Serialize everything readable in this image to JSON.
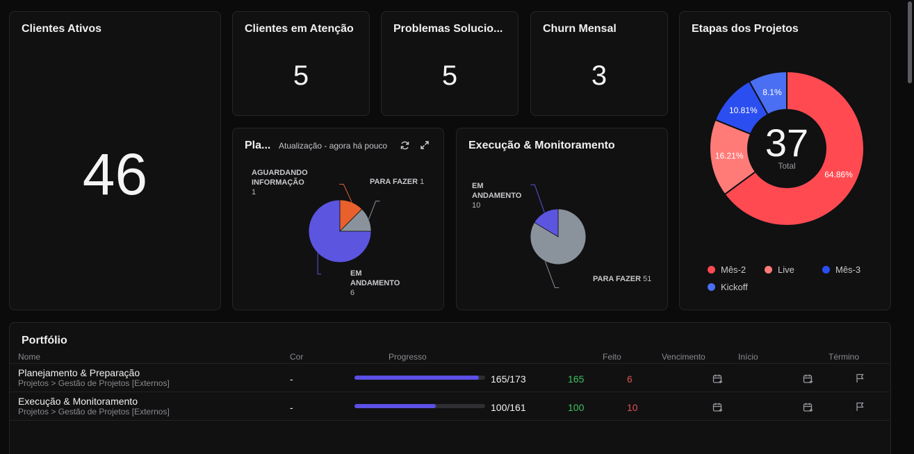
{
  "kpis": {
    "clientes_ativos": {
      "title": "Clientes Ativos",
      "value": "46"
    },
    "clientes_atencao": {
      "title": "Clientes em Atenção",
      "value": "5"
    },
    "problemas": {
      "title": "Problemas Solucio...",
      "value": "5"
    },
    "churn": {
      "title": "Churn Mensal",
      "value": "3"
    }
  },
  "planejamento": {
    "title": "Pla...",
    "update": "Atualização - agora há pouco",
    "slices": [
      {
        "name": "EM ANDAMENTO",
        "value": 6,
        "color": "#5b55e0",
        "label_lines": [
          "EM",
          "ANDAMENTO"
        ],
        "count": "6"
      },
      {
        "name": "AGUARDANDO INFORMAÇÃO",
        "value": 1,
        "color": "#e8612c",
        "label_lines": [
          "AGUARDANDO",
          "INFORMAÇÃO"
        ],
        "count": "1"
      },
      {
        "name": "PARA FAZER",
        "value": 1,
        "color": "#8a939c",
        "label_lines": [
          "PARA FAZER"
        ],
        "count": "1"
      }
    ]
  },
  "execucao": {
    "title": "Execução & Monitoramento",
    "slices": [
      {
        "name": "EM ANDAMENTO",
        "value": 10,
        "color": "#5b55e0",
        "label_lines": [
          "EM",
          "ANDAMENTO"
        ],
        "count": "10"
      },
      {
        "name": "PARA FAZER",
        "value": 51,
        "color": "#8a939c",
        "label_lines": [
          "PARA FAZER"
        ],
        "count": "51"
      }
    ]
  },
  "etapas": {
    "title": "Etapas dos Projetos",
    "total_value": "37",
    "total_label": "Total",
    "slices": [
      {
        "name": "Mês-2",
        "value": 64.86,
        "label": "64.86%",
        "color": "#ff4a52"
      },
      {
        "name": "Live",
        "value": 16.21,
        "label": "16.21%",
        "color": "#ff7b78"
      },
      {
        "name": "Mês-3",
        "value": 10.81,
        "label": "10.81%",
        "color": "#2b4ef0"
      },
      {
        "name": "Kickoff",
        "value": 8.1,
        "label": "8.1%",
        "color": "#4a6ff2"
      }
    ]
  },
  "portfolio": {
    "title": "Portfólio",
    "headers": {
      "nome": "Nome",
      "cor": "Cor",
      "progresso": "Progresso",
      "feito": "Feito",
      "vencimento": "Vencimento",
      "inicio": "Início",
      "termino": "Término"
    },
    "rows": [
      {
        "name": "Planejamento & Preparação",
        "path": "Projetos > Gestão de Projetos [Externos]",
        "cor": "-",
        "progress_done": 165,
        "progress_total": 173,
        "progress_text": "165/173",
        "feito": "165",
        "pendente": "6"
      },
      {
        "name": "Execução & Monitoramento",
        "path": "Projetos > Gestão de Projetos [Externos]",
        "cor": "-",
        "progress_done": 100,
        "progress_total": 161,
        "progress_text": "100/161",
        "feito": "100",
        "pendente": "10"
      }
    ]
  }
}
